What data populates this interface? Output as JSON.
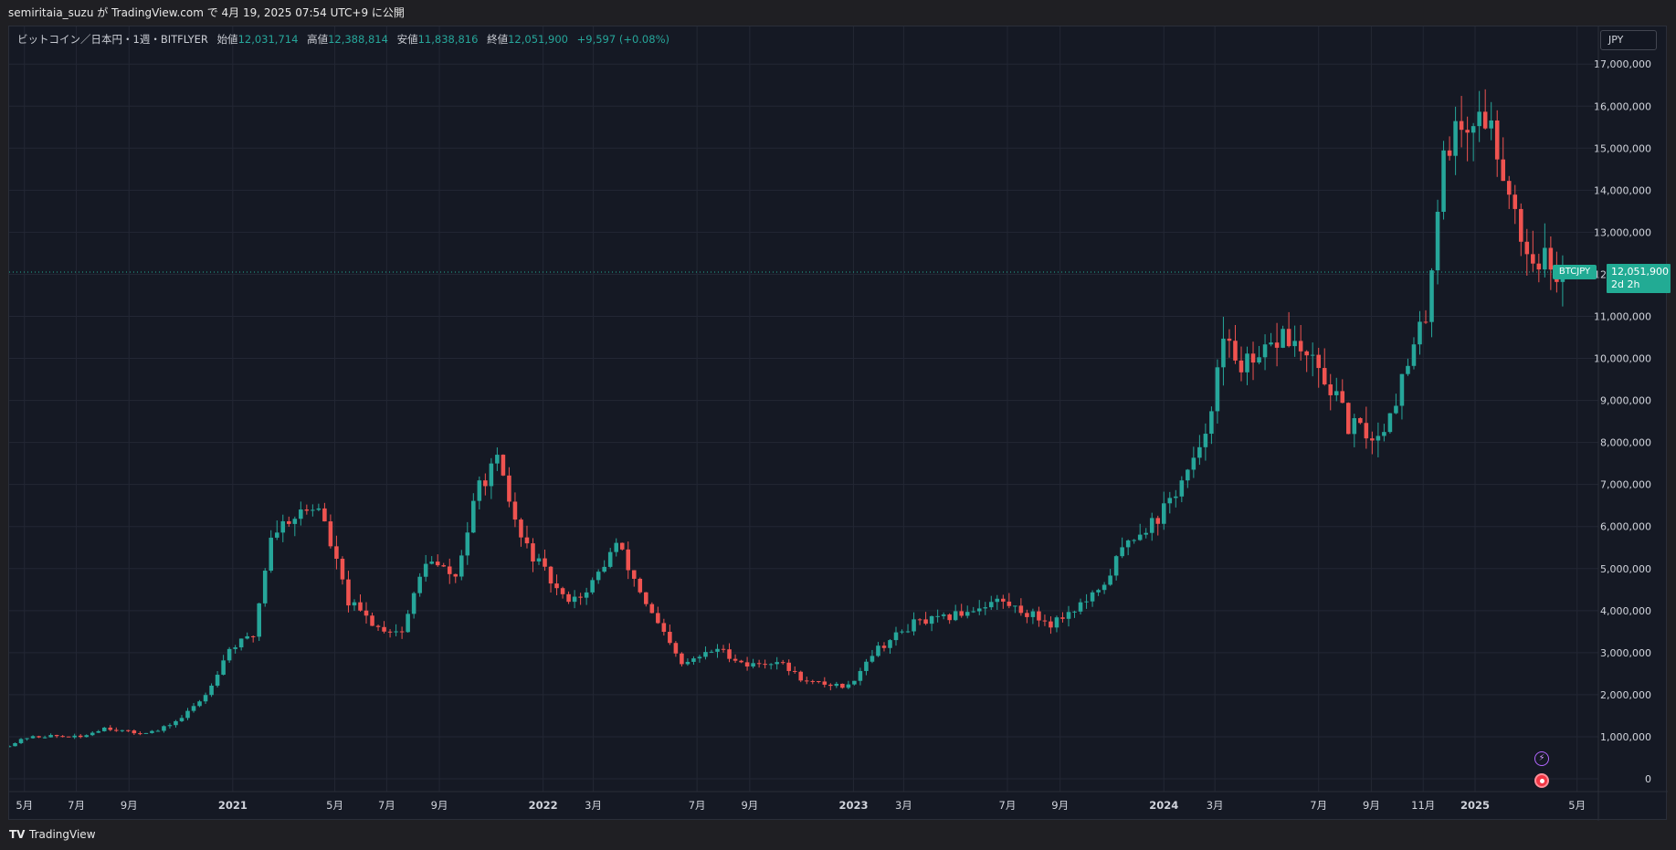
{
  "header": {
    "publish_line": "semiritaia_suzu が TradingView.com で 4月 19, 2025 07:54 UTC+9 に公開"
  },
  "legend": {
    "symbol": "ビットコイン／日本円・1週・BITFLYER",
    "open_label": "始値",
    "open": "12,031,714",
    "high_label": "高値",
    "high": "12,388,814",
    "low_label": "安値",
    "low": "11,838,816",
    "close_label": "終値",
    "close": "12,051,900",
    "change": "+9,597 (+0.08%)"
  },
  "currency_button": "JPY",
  "price_tag": {
    "symbol": "BTCJPY",
    "price": "12,051,900",
    "countdown": "2d 2h"
  },
  "footer": {
    "brand": "TradingView"
  },
  "icons": {
    "lightning": "lightning-icon",
    "record": "record-icon",
    "logo": "tradingview-logo-icon"
  },
  "colors": {
    "up": "#26a69a",
    "down": "#ef5350",
    "background": "#151924",
    "grid": "#232734"
  },
  "chart_data": {
    "type": "candlestick",
    "interval": "1週",
    "ylim": [
      0,
      17200000
    ],
    "y_ticks": [
      0,
      1000000,
      2000000,
      3000000,
      4000000,
      5000000,
      6000000,
      7000000,
      8000000,
      9000000,
      10000000,
      11000000,
      12000000,
      13000000,
      14000000,
      15000000,
      16000000,
      17000000
    ],
    "y_tick_labels": [
      "0",
      "1,000,000",
      "2,000,000",
      "3,000,000",
      "4,000,000",
      "5,000,000",
      "6,000,000",
      "7,000,000",
      "8,000,000",
      "9,000,000",
      "10,000,000",
      "11,000,000",
      "12,000,000",
      "13,000,000",
      "14,000,000",
      "15,000,000",
      "16,000,000",
      "17,000,000"
    ],
    "x_range": [
      "2020-04-13",
      "2025-05-26"
    ],
    "x_ticks": [
      {
        "date": "2020-05-01",
        "label": "5月"
      },
      {
        "date": "2020-07-01",
        "label": "7月"
      },
      {
        "date": "2020-09-01",
        "label": "9月"
      },
      {
        "date": "2021-01-01",
        "label": "2021"
      },
      {
        "date": "2021-05-01",
        "label": "5月"
      },
      {
        "date": "2021-07-01",
        "label": "7月"
      },
      {
        "date": "2021-09-01",
        "label": "9月"
      },
      {
        "date": "2022-01-01",
        "label": "2022"
      },
      {
        "date": "2022-03-01",
        "label": "3月"
      },
      {
        "date": "2022-07-01",
        "label": "7月"
      },
      {
        "date": "2022-09-01",
        "label": "9月"
      },
      {
        "date": "2023-01-01",
        "label": "2023"
      },
      {
        "date": "2023-03-01",
        "label": "3月"
      },
      {
        "date": "2023-07-01",
        "label": "7月"
      },
      {
        "date": "2023-09-01",
        "label": "9月"
      },
      {
        "date": "2024-01-01",
        "label": "2024"
      },
      {
        "date": "2024-03-01",
        "label": "3月"
      },
      {
        "date": "2024-07-01",
        "label": "7月"
      },
      {
        "date": "2024-09-01",
        "label": "9月"
      },
      {
        "date": "2024-11-01",
        "label": "11月"
      },
      {
        "date": "2025-01-01",
        "label": "2025"
      },
      {
        "date": "2025-05-01",
        "label": "5月"
      }
    ],
    "last_price": 12051900,
    "weekly_close": [
      {
        "date": "2020-04-13",
        "close": 800000
      },
      {
        "date": "2020-05-04",
        "close": 980000
      },
      {
        "date": "2020-06-01",
        "close": 1020000
      },
      {
        "date": "2020-07-06",
        "close": 990000
      },
      {
        "date": "2020-08-03",
        "close": 1220000
      },
      {
        "date": "2020-09-07",
        "close": 1090000
      },
      {
        "date": "2020-10-05",
        "close": 1140000
      },
      {
        "date": "2020-11-02",
        "close": 1450000
      },
      {
        "date": "2020-11-30",
        "close": 2000000
      },
      {
        "date": "2020-12-28",
        "close": 3100000
      },
      {
        "date": "2021-01-25",
        "close": 3400000
      },
      {
        "date": "2021-02-15",
        "close": 5800000
      },
      {
        "date": "2021-03-08",
        "close": 6200000
      },
      {
        "date": "2021-04-12",
        "close": 6500000
      },
      {
        "date": "2021-05-17",
        "close": 4200000
      },
      {
        "date": "2021-06-21",
        "close": 3600000
      },
      {
        "date": "2021-07-19",
        "close": 3500000
      },
      {
        "date": "2021-08-16",
        "close": 5200000
      },
      {
        "date": "2021-09-20",
        "close": 4800000
      },
      {
        "date": "2021-10-18",
        "close": 7000000
      },
      {
        "date": "2021-11-08",
        "close": 7500000
      },
      {
        "date": "2021-12-06",
        "close": 5700000
      },
      {
        "date": "2022-01-24",
        "close": 4300000
      },
      {
        "date": "2022-02-21",
        "close": 4400000
      },
      {
        "date": "2022-03-28",
        "close": 5600000
      },
      {
        "date": "2022-05-09",
        "close": 3900000
      },
      {
        "date": "2022-06-13",
        "close": 2700000
      },
      {
        "date": "2022-07-25",
        "close": 3100000
      },
      {
        "date": "2022-08-29",
        "close": 2700000
      },
      {
        "date": "2022-10-03",
        "close": 2800000
      },
      {
        "date": "2022-11-07",
        "close": 2300000
      },
      {
        "date": "2022-12-26",
        "close": 2200000
      },
      {
        "date": "2023-01-23",
        "close": 3000000
      },
      {
        "date": "2023-03-13",
        "close": 3700000
      },
      {
        "date": "2023-04-17",
        "close": 3800000
      },
      {
        "date": "2023-06-19",
        "close": 4250000
      },
      {
        "date": "2023-08-21",
        "close": 3700000
      },
      {
        "date": "2023-10-16",
        "close": 4400000
      },
      {
        "date": "2023-11-20",
        "close": 5700000
      },
      {
        "date": "2023-12-25",
        "close": 6200000
      },
      {
        "date": "2024-02-12",
        "close": 7700000
      },
      {
        "date": "2024-03-11",
        "close": 10300000
      },
      {
        "date": "2024-04-15",
        "close": 9700000
      },
      {
        "date": "2024-05-20",
        "close": 10600000
      },
      {
        "date": "2024-06-17",
        "close": 10000000
      },
      {
        "date": "2024-07-15",
        "close": 9300000
      },
      {
        "date": "2024-08-05",
        "close": 8400000
      },
      {
        "date": "2024-09-09",
        "close": 8100000
      },
      {
        "date": "2024-10-14",
        "close": 9800000
      },
      {
        "date": "2024-11-04",
        "close": 11000000
      },
      {
        "date": "2024-11-25",
        "close": 15000000
      },
      {
        "date": "2024-12-16",
        "close": 15500000
      },
      {
        "date": "2025-01-13",
        "close": 15800000
      },
      {
        "date": "2025-02-03",
        "close": 14600000
      },
      {
        "date": "2025-03-03",
        "close": 12500000
      },
      {
        "date": "2025-03-24",
        "close": 12400000
      },
      {
        "date": "2025-04-07",
        "close": 11600000
      },
      {
        "date": "2025-04-14",
        "close": 12051900
      }
    ]
  }
}
